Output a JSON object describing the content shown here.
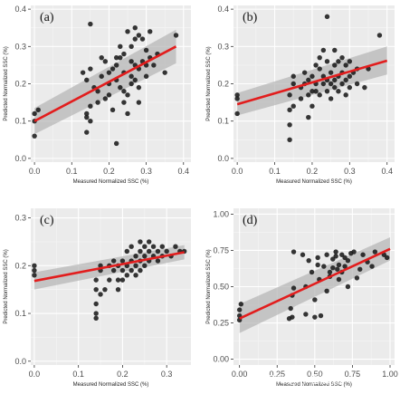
{
  "watermark": "CSDN @小看加油",
  "chart_data": [
    {
      "type": "scatter",
      "panel_label": "(a)",
      "xlabel": "Measured Normalized SSC (%)",
      "ylabel": "Predicted Normalized SSC (%)",
      "xlim": [
        -0.01,
        0.42
      ],
      "ylim": [
        -0.01,
        0.41
      ],
      "xticks": [
        0.0,
        0.1,
        0.2,
        0.3,
        0.4
      ],
      "xtick_labels": [
        "0.0",
        "0.1",
        "0.2",
        "0.3",
        "0.4"
      ],
      "yticks": [
        0.0,
        0.1,
        0.2,
        0.3,
        0.4
      ],
      "ytick_labels": [
        "0.0",
        "0.1",
        "0.2",
        "0.3",
        "0.4"
      ],
      "fit_line": [
        [
          0.0,
          0.1
        ],
        [
          0.38,
          0.3
        ]
      ],
      "ci_band": {
        "x": [
          0.0,
          0.38
        ],
        "lower": [
          0.065,
          0.255
        ],
        "upper": [
          0.135,
          0.345
        ]
      },
      "points": [
        [
          0.0,
          0.06
        ],
        [
          0.0,
          0.1
        ],
        [
          0.0,
          0.12
        ],
        [
          0.01,
          0.13
        ],
        [
          0.14,
          0.07
        ],
        [
          0.14,
          0.11
        ],
        [
          0.14,
          0.12
        ],
        [
          0.15,
          0.1
        ],
        [
          0.15,
          0.14
        ],
        [
          0.14,
          0.21
        ],
        [
          0.15,
          0.24
        ],
        [
          0.15,
          0.36
        ],
        [
          0.17,
          0.15
        ],
        [
          0.17,
          0.18
        ],
        [
          0.18,
          0.22
        ],
        [
          0.19,
          0.16
        ],
        [
          0.19,
          0.26
        ],
        [
          0.2,
          0.17
        ],
        [
          0.2,
          0.2
        ],
        [
          0.21,
          0.13
        ],
        [
          0.21,
          0.24
        ],
        [
          0.22,
          0.04
        ],
        [
          0.22,
          0.21
        ],
        [
          0.22,
          0.27
        ],
        [
          0.23,
          0.19
        ],
        [
          0.23,
          0.27
        ],
        [
          0.23,
          0.3
        ],
        [
          0.24,
          0.18
        ],
        [
          0.24,
          0.23
        ],
        [
          0.24,
          0.28
        ],
        [
          0.25,
          0.12
        ],
        [
          0.25,
          0.17
        ],
        [
          0.25,
          0.34
        ],
        [
          0.26,
          0.22
        ],
        [
          0.26,
          0.26
        ],
        [
          0.26,
          0.3
        ],
        [
          0.27,
          0.21
        ],
        [
          0.27,
          0.25
        ],
        [
          0.27,
          0.32
        ],
        [
          0.27,
          0.35
        ],
        [
          0.28,
          0.15
        ],
        [
          0.28,
          0.19
        ],
        [
          0.28,
          0.24
        ],
        [
          0.28,
          0.33
        ],
        [
          0.29,
          0.26
        ],
        [
          0.29,
          0.32
        ],
        [
          0.3,
          0.22
        ],
        [
          0.3,
          0.25
        ],
        [
          0.3,
          0.29
        ],
        [
          0.31,
          0.27
        ],
        [
          0.31,
          0.34
        ],
        [
          0.32,
          0.25
        ],
        [
          0.33,
          0.28
        ],
        [
          0.35,
          0.23
        ],
        [
          0.38,
          0.33
        ],
        [
          0.13,
          0.23
        ],
        [
          0.16,
          0.19
        ],
        [
          0.18,
          0.27
        ],
        [
          0.2,
          0.23
        ],
        [
          0.22,
          0.25
        ],
        [
          0.24,
          0.15
        ],
        [
          0.26,
          0.2
        ]
      ]
    },
    {
      "type": "scatter",
      "panel_label": "(b)",
      "xlabel": "Measured Normalized SSC (%)",
      "ylabel": "Predicted Normalized SSC (%)",
      "xlim": [
        -0.01,
        0.42
      ],
      "ylim": [
        -0.01,
        0.41
      ],
      "xticks": [
        0.0,
        0.1,
        0.2,
        0.3,
        0.4
      ],
      "xtick_labels": [
        "0.0",
        "0.1",
        "0.2",
        "0.3",
        "0.4"
      ],
      "yticks": [
        0.0,
        0.1,
        0.2,
        0.3,
        0.4
      ],
      "ytick_labels": [
        "0.0",
        "0.1",
        "0.2",
        "0.3",
        "0.4"
      ],
      "fit_line": [
        [
          0.0,
          0.145
        ],
        [
          0.4,
          0.262
        ]
      ],
      "ci_band": {
        "x": [
          0.0,
          0.4
        ],
        "lower": [
          0.115,
          0.225
        ],
        "upper": [
          0.175,
          0.3
        ]
      },
      "points": [
        [
          0.0,
          0.12
        ],
        [
          0.0,
          0.16
        ],
        [
          0.0,
          0.17
        ],
        [
          0.14,
          0.05
        ],
        [
          0.14,
          0.09
        ],
        [
          0.14,
          0.13
        ],
        [
          0.14,
          0.17
        ],
        [
          0.15,
          0.14
        ],
        [
          0.15,
          0.2
        ],
        [
          0.15,
          0.22
        ],
        [
          0.17,
          0.16
        ],
        [
          0.17,
          0.19
        ],
        [
          0.18,
          0.2
        ],
        [
          0.18,
          0.23
        ],
        [
          0.19,
          0.11
        ],
        [
          0.19,
          0.17
        ],
        [
          0.19,
          0.21
        ],
        [
          0.2,
          0.14
        ],
        [
          0.2,
          0.18
        ],
        [
          0.2,
          0.22
        ],
        [
          0.21,
          0.2
        ],
        [
          0.21,
          0.25
        ],
        [
          0.22,
          0.17
        ],
        [
          0.22,
          0.24
        ],
        [
          0.22,
          0.27
        ],
        [
          0.23,
          0.2
        ],
        [
          0.23,
          0.22
        ],
        [
          0.23,
          0.29
        ],
        [
          0.24,
          0.18
        ],
        [
          0.24,
          0.21
        ],
        [
          0.24,
          0.26
        ],
        [
          0.24,
          0.38
        ],
        [
          0.25,
          0.16
        ],
        [
          0.25,
          0.23
        ],
        [
          0.26,
          0.19
        ],
        [
          0.26,
          0.21
        ],
        [
          0.26,
          0.25
        ],
        [
          0.26,
          0.29
        ],
        [
          0.27,
          0.18
        ],
        [
          0.27,
          0.22
        ],
        [
          0.27,
          0.26
        ],
        [
          0.28,
          0.2
        ],
        [
          0.28,
          0.23
        ],
        [
          0.29,
          0.17
        ],
        [
          0.29,
          0.21
        ],
        [
          0.29,
          0.25
        ],
        [
          0.3,
          0.19
        ],
        [
          0.3,
          0.22
        ],
        [
          0.3,
          0.26
        ],
        [
          0.31,
          0.23
        ],
        [
          0.32,
          0.2
        ],
        [
          0.32,
          0.24
        ],
        [
          0.34,
          0.19
        ],
        [
          0.35,
          0.24
        ],
        [
          0.38,
          0.33
        ],
        [
          0.21,
          0.18
        ],
        [
          0.25,
          0.2
        ],
        [
          0.28,
          0.27
        ]
      ]
    },
    {
      "type": "scatter",
      "panel_label": "(c)",
      "xlabel": "Measured Normalized SSC (%)",
      "ylabel": "Predicted Normalized SSC (%)",
      "xlim": [
        -0.008,
        0.355
      ],
      "ylim": [
        -0.008,
        0.32
      ],
      "xticks": [
        0.0,
        0.1,
        0.2,
        0.3
      ],
      "xtick_labels": [
        "0.0",
        "0.1",
        "0.2",
        "0.3"
      ],
      "yticks": [
        0.0,
        0.1,
        0.2,
        0.3
      ],
      "ytick_labels": [
        "0.0",
        "0.1",
        "0.2",
        "0.3"
      ],
      "fit_line": [
        [
          0.0,
          0.168
        ],
        [
          0.34,
          0.228
        ]
      ],
      "ci_band": {
        "x": [
          0.0,
          0.34
        ],
        "lower": [
          0.15,
          0.213
        ],
        "upper": [
          0.186,
          0.243
        ]
      },
      "points": [
        [
          0.0,
          0.18
        ],
        [
          0.0,
          0.19
        ],
        [
          0.0,
          0.2
        ],
        [
          0.14,
          0.09
        ],
        [
          0.14,
          0.1
        ],
        [
          0.14,
          0.12
        ],
        [
          0.14,
          0.15
        ],
        [
          0.14,
          0.17
        ],
        [
          0.15,
          0.14
        ],
        [
          0.15,
          0.19
        ],
        [
          0.15,
          0.2
        ],
        [
          0.16,
          0.15
        ],
        [
          0.17,
          0.17
        ],
        [
          0.17,
          0.2
        ],
        [
          0.18,
          0.19
        ],
        [
          0.18,
          0.21
        ],
        [
          0.19,
          0.15
        ],
        [
          0.19,
          0.2
        ],
        [
          0.2,
          0.17
        ],
        [
          0.2,
          0.19
        ],
        [
          0.2,
          0.21
        ],
        [
          0.21,
          0.18
        ],
        [
          0.21,
          0.2
        ],
        [
          0.21,
          0.23
        ],
        [
          0.22,
          0.19
        ],
        [
          0.22,
          0.21
        ],
        [
          0.22,
          0.24
        ],
        [
          0.23,
          0.2
        ],
        [
          0.23,
          0.22
        ],
        [
          0.24,
          0.19
        ],
        [
          0.24,
          0.21
        ],
        [
          0.24,
          0.23
        ],
        [
          0.24,
          0.25
        ],
        [
          0.25,
          0.2
        ],
        [
          0.25,
          0.22
        ],
        [
          0.25,
          0.24
        ],
        [
          0.26,
          0.21
        ],
        [
          0.26,
          0.23
        ],
        [
          0.26,
          0.25
        ],
        [
          0.27,
          0.22
        ],
        [
          0.27,
          0.24
        ],
        [
          0.28,
          0.21
        ],
        [
          0.28,
          0.23
        ],
        [
          0.29,
          0.22
        ],
        [
          0.29,
          0.24
        ],
        [
          0.3,
          0.23
        ],
        [
          0.31,
          0.22
        ],
        [
          0.32,
          0.24
        ],
        [
          0.33,
          0.23
        ],
        [
          0.34,
          0.23
        ],
        [
          0.19,
          0.17
        ],
        [
          0.23,
          0.18
        ]
      ]
    },
    {
      "type": "scatter",
      "panel_label": "(d)",
      "xlabel": "Measured Normalized SSC (%)",
      "ylabel": "Predicted Normalized SSC (%)",
      "xlim": [
        -0.04,
        1.03
      ],
      "ylim": [
        -0.04,
        1.04
      ],
      "xticks": [
        0.0,
        0.25,
        0.5,
        0.75,
        1.0
      ],
      "xtick_labels": [
        "0.00",
        "0.25",
        "0.50",
        "0.75",
        "1.00"
      ],
      "yticks": [
        0.0,
        0.25,
        0.5,
        0.75,
        1.0
      ],
      "ytick_labels": [
        "0.00",
        "0.25",
        "0.50",
        "0.75",
        "1.00"
      ],
      "fit_line": [
        [
          0.0,
          0.28
        ],
        [
          1.0,
          0.76
        ]
      ],
      "ci_band": {
        "x": [
          0.0,
          1.0
        ],
        "lower": [
          0.18,
          0.68
        ],
        "upper": [
          0.38,
          0.84
        ]
      },
      "points": [
        [
          0.0,
          0.27
        ],
        [
          0.0,
          0.3
        ],
        [
          0.01,
          0.38
        ],
        [
          0.0,
          0.34
        ],
        [
          0.33,
          0.28
        ],
        [
          0.34,
          0.35
        ],
        [
          0.35,
          0.29
        ],
        [
          0.35,
          0.44
        ],
        [
          0.36,
          0.49
        ],
        [
          0.36,
          0.74
        ],
        [
          0.42,
          0.72
        ],
        [
          0.44,
          0.31
        ],
        [
          0.44,
          0.5
        ],
        [
          0.46,
          0.68
        ],
        [
          0.48,
          0.6
        ],
        [
          0.5,
          0.29
        ],
        [
          0.5,
          0.41
        ],
        [
          0.52,
          0.65
        ],
        [
          0.53,
          0.55
        ],
        [
          0.54,
          0.3
        ],
        [
          0.56,
          0.64
        ],
        [
          0.58,
          0.47
        ],
        [
          0.58,
          0.72
        ],
        [
          0.6,
          0.6
        ],
        [
          0.6,
          0.57
        ],
        [
          0.62,
          0.63
        ],
        [
          0.62,
          0.69
        ],
        [
          0.64,
          0.71
        ],
        [
          0.64,
          0.74
        ],
        [
          0.65,
          0.62
        ],
        [
          0.66,
          0.55
        ],
        [
          0.66,
          0.65
        ],
        [
          0.68,
          0.72
        ],
        [
          0.7,
          0.7
        ],
        [
          0.7,
          0.64
        ],
        [
          0.72,
          0.5
        ],
        [
          0.72,
          0.68
        ],
        [
          0.74,
          0.73
        ],
        [
          0.76,
          0.74
        ],
        [
          0.78,
          0.56
        ],
        [
          0.8,
          0.62
        ],
        [
          0.82,
          0.72
        ],
        [
          0.85,
          0.67
        ],
        [
          0.88,
          0.64
        ],
        [
          0.9,
          0.74
        ],
        [
          0.96,
          0.72
        ],
        [
          0.98,
          0.7
        ],
        [
          0.52,
          0.7
        ],
        [
          0.68,
          0.6
        ]
      ]
    }
  ]
}
